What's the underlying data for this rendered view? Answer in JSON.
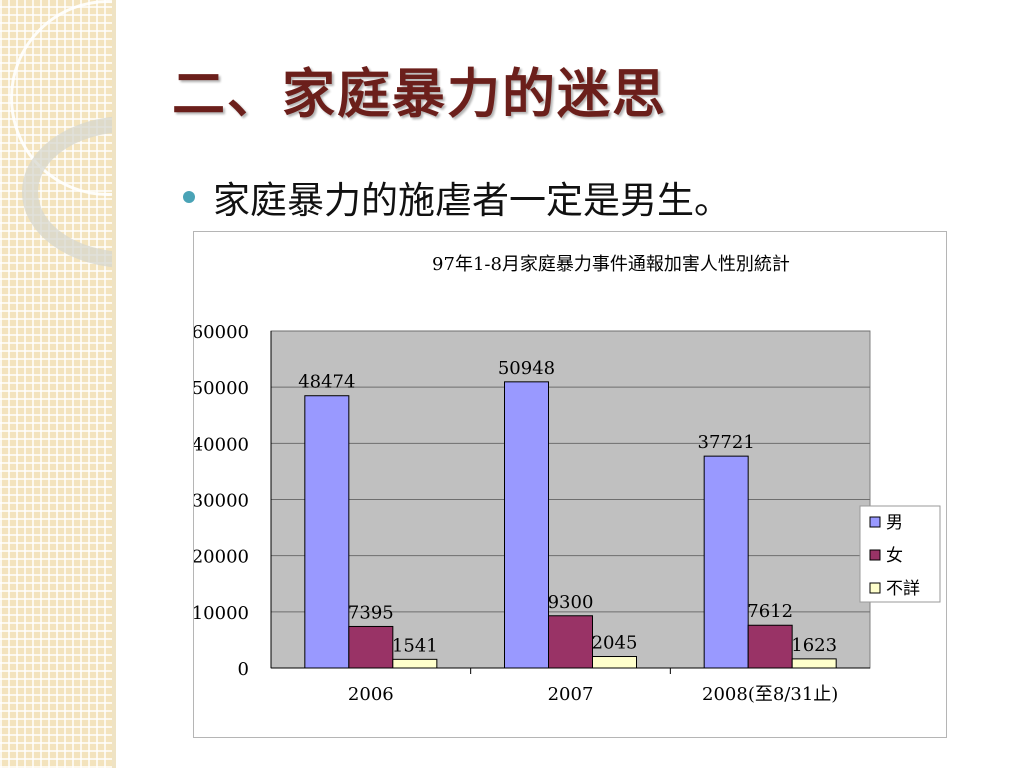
{
  "slide": {
    "title": "二、家庭暴力的迷思",
    "bullet": "家庭暴力的施虐者一定是男生。"
  },
  "colors": {
    "title": "#6b1f1b",
    "bullet": "#4aa3b6",
    "plot_bg": "#c0c0c0",
    "male": "#9999ff",
    "female": "#993366",
    "unknown": "#ffffcc"
  },
  "chart_data": {
    "type": "bar",
    "title": "97年1-8月家庭暴力事件通報加害人性別統計",
    "categories": [
      "2006",
      "2007",
      "2008(至8/31止)"
    ],
    "series": [
      {
        "name": "男",
        "values": [
          48474,
          50948,
          37721
        ],
        "color": "#9999ff"
      },
      {
        "name": "女",
        "values": [
          7395,
          9300,
          7612
        ],
        "color": "#993366"
      },
      {
        "name": "不詳",
        "values": [
          1541,
          2045,
          1623
        ],
        "color": "#ffffcc"
      }
    ],
    "ylim": [
      0,
      60000
    ],
    "yticks": [
      0,
      10000,
      20000,
      30000,
      40000,
      50000,
      60000
    ],
    "grid": true,
    "legend": "right"
  }
}
